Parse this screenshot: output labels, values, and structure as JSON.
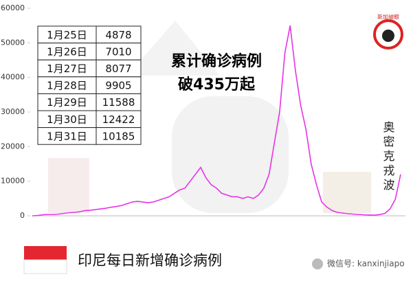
{
  "chart_data": {
    "type": "line",
    "title": [
      "累计确诊病例",
      "破435万起"
    ],
    "annotation": [
      "奥",
      "密",
      "克",
      "戎",
      "波"
    ],
    "caption": "印尼每日新增确诊病例",
    "watermark": "微信号: kanxinjiapo",
    "logo": "新加坡眼",
    "table": {
      "rows": [
        [
          "1月25日",
          4878
        ],
        [
          "1月26日",
          7010
        ],
        [
          "1月27日",
          8077
        ],
        [
          "1月28日",
          9905
        ],
        [
          "1月29日",
          11588
        ],
        [
          "1月30日",
          12422
        ],
        [
          "1月31日",
          10185
        ]
      ]
    },
    "ylim": [
      0,
      60000
    ],
    "yticks": [
      0,
      10000,
      20000,
      30000,
      40000,
      50000,
      60000
    ],
    "series": [
      {
        "color": "#e632e6",
        "values": [
          0,
          100,
          300,
          400,
          400,
          500,
          700,
          900,
          1000,
          1200,
          1500,
          1600,
          1800,
          2000,
          2200,
          2500,
          2700,
          3000,
          3500,
          4000,
          4200,
          4000,
          3800,
          4000,
          4500,
          5000,
          5500,
          6500,
          7500,
          8000,
          10000,
          12000,
          14000,
          11000,
          9000,
          8000,
          6500,
          6000,
          5500,
          5500,
          5000,
          5500,
          5000,
          6000,
          8000,
          12000,
          21000,
          30000,
          47000,
          55000,
          42000,
          32000,
          25000,
          15000,
          9000,
          4000,
          2500,
          1500,
          1000,
          800,
          600,
          500,
          400,
          300,
          250,
          200,
          350,
          700,
          2000,
          4800,
          12000
        ]
      }
    ]
  }
}
